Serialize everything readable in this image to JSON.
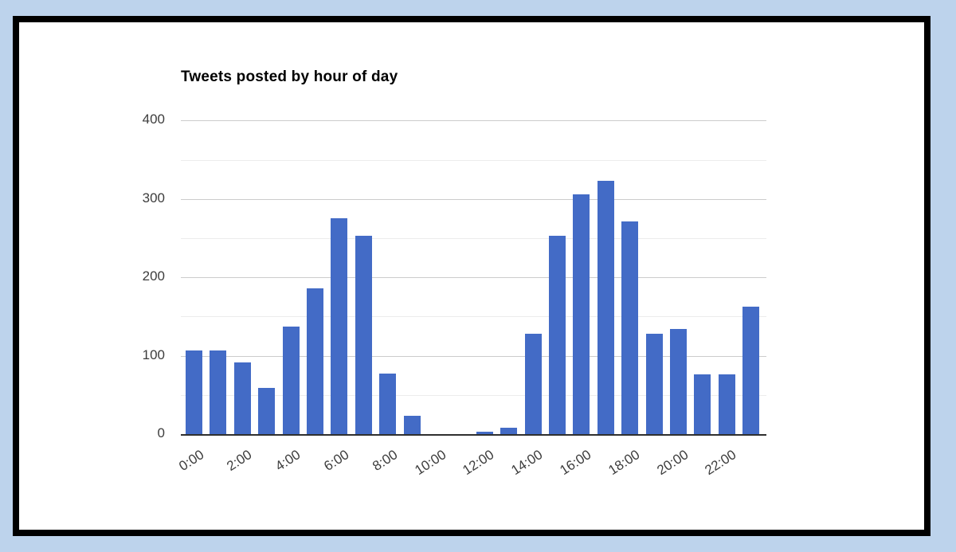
{
  "page": {
    "background_color": "#bdd3ec",
    "panel_background": "#ffffff",
    "panel_border_color": "#000000"
  },
  "chart_data": {
    "type": "bar",
    "title": "Tweets posted by hour of day",
    "categories": [
      "0:00",
      "1:00",
      "2:00",
      "3:00",
      "4:00",
      "5:00",
      "6:00",
      "7:00",
      "8:00",
      "9:00",
      "10:00",
      "11:00",
      "12:00",
      "13:00",
      "14:00",
      "15:00",
      "16:00",
      "17:00",
      "18:00",
      "19:00",
      "20:00",
      "21:00",
      "22:00",
      "23:00"
    ],
    "values": [
      107,
      107,
      91,
      59,
      137,
      186,
      275,
      253,
      77,
      23,
      0,
      0,
      3,
      8,
      128,
      253,
      306,
      323,
      271,
      128,
      134,
      76,
      76,
      163
    ],
    "x_tick_labels": [
      "0:00",
      "2:00",
      "4:00",
      "6:00",
      "8:00",
      "10:00",
      "12:00",
      "14:00",
      "16:00",
      "18:00",
      "20:00",
      "22:00"
    ],
    "x_tick_every": 2,
    "y_ticks": [
      0,
      100,
      200,
      300,
      400
    ],
    "ylim": [
      0,
      400
    ],
    "gridline_minor_step": 50,
    "xlabel": "",
    "ylabel": "",
    "legend": "none",
    "colors": {
      "bar": "#436bc6",
      "gridline_major": "#cccccc",
      "gridline_minor": "#ececec",
      "axis_line": "#2f2f2f",
      "tick_label": "#3d3d3d",
      "title": "#000000"
    }
  }
}
